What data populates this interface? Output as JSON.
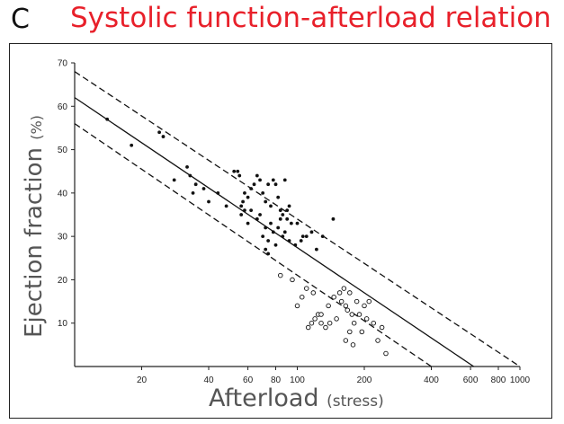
{
  "panel_letter": "C",
  "chart_data": {
    "type": "scatter",
    "title": "Systolic function-afterload relation",
    "ylabel": "Ejection fraction",
    "ylabel_unit": "(%)",
    "xlabel": "Afterload",
    "xlabel_unit": "(stress)",
    "x_scale": "log",
    "xlim": [
      10,
      1000
    ],
    "ylim": [
      0,
      70
    ],
    "x_ticks": [
      {
        "value": 20,
        "label": "20"
      },
      {
        "value": 40,
        "label": "40"
      },
      {
        "value": 60,
        "label": "60"
      },
      {
        "value": 80,
        "label": "80"
      },
      {
        "value": 100,
        "label": "100"
      },
      {
        "value": 200,
        "label": "200"
      },
      {
        "value": 400,
        "label": "400"
      },
      {
        "value": 600,
        "label": "600"
      },
      {
        "value": 800,
        "label": "800"
      },
      {
        "value": 1000,
        "label": "1000"
      }
    ],
    "y_ticks": [
      {
        "value": 10,
        "label": "10"
      },
      {
        "value": 20,
        "label": "20"
      },
      {
        "value": 30,
        "label": "30"
      },
      {
        "value": 40,
        "label": "40"
      },
      {
        "value": 50,
        "label": "50"
      },
      {
        "value": 60,
        "label": "60"
      },
      {
        "value": 70,
        "label": "70"
      }
    ],
    "grid": false,
    "lines": [
      {
        "style": "dashed",
        "points": [
          [
            10,
            68
          ],
          [
            1000,
            0
          ]
        ]
      },
      {
        "style": "solid",
        "points": [
          [
            10,
            62
          ],
          [
            620,
            0
          ]
        ]
      },
      {
        "style": "dashed",
        "points": [
          [
            10,
            56
          ],
          [
            400,
            0
          ]
        ]
      }
    ],
    "series": [
      {
        "marker": "filled",
        "points": [
          [
            14,
            57
          ],
          [
            18,
            51
          ],
          [
            24,
            54
          ],
          [
            25,
            53
          ],
          [
            28,
            43
          ],
          [
            32,
            46
          ],
          [
            33,
            44
          ],
          [
            34,
            40
          ],
          [
            35,
            42
          ],
          [
            38,
            41
          ],
          [
            40,
            38
          ],
          [
            44,
            40
          ],
          [
            48,
            37
          ],
          [
            52,
            45
          ],
          [
            54,
            45
          ],
          [
            55,
            44
          ],
          [
            56,
            37
          ],
          [
            57,
            38
          ],
          [
            58,
            36
          ],
          [
            60,
            39
          ],
          [
            62,
            41
          ],
          [
            64,
            42
          ],
          [
            66,
            44
          ],
          [
            68,
            43
          ],
          [
            70,
            40
          ],
          [
            72,
            38
          ],
          [
            74,
            42
          ],
          [
            76,
            37
          ],
          [
            78,
            43
          ],
          [
            80,
            42
          ],
          [
            82,
            39
          ],
          [
            84,
            36
          ],
          [
            86,
            35
          ],
          [
            88,
            43
          ],
          [
            90,
            34
          ],
          [
            92,
            37
          ],
          [
            56,
            35
          ],
          [
            60,
            33
          ],
          [
            66,
            34
          ],
          [
            70,
            30
          ],
          [
            72,
            32
          ],
          [
            74,
            29
          ],
          [
            76,
            33
          ],
          [
            78,
            31
          ],
          [
            80,
            28
          ],
          [
            82,
            32
          ],
          [
            86,
            30
          ],
          [
            88,
            31
          ],
          [
            94,
            33
          ],
          [
            98,
            28
          ],
          [
            104,
            29
          ],
          [
            110,
            30
          ],
          [
            116,
            31
          ],
          [
            122,
            27
          ],
          [
            130,
            30
          ],
          [
            145,
            34
          ],
          [
            74,
            26
          ],
          [
            72,
            27
          ],
          [
            84,
            34
          ],
          [
            90,
            36
          ],
          [
            58,
            40
          ],
          [
            62,
            36
          ],
          [
            68,
            35
          ],
          [
            92,
            29
          ],
          [
            100,
            33
          ],
          [
            106,
            30
          ]
        ]
      },
      {
        "marker": "open",
        "points": [
          [
            84,
            21
          ],
          [
            95,
            20
          ],
          [
            100,
            14
          ],
          [
            105,
            16
          ],
          [
            110,
            18
          ],
          [
            116,
            10
          ],
          [
            120,
            11
          ],
          [
            124,
            12
          ],
          [
            128,
            10
          ],
          [
            134,
            9
          ],
          [
            140,
            10
          ],
          [
            146,
            16
          ],
          [
            155,
            17
          ],
          [
            158,
            15
          ],
          [
            162,
            18
          ],
          [
            165,
            14
          ],
          [
            168,
            13
          ],
          [
            172,
            17
          ],
          [
            176,
            12
          ],
          [
            180,
            10
          ],
          [
            185,
            15
          ],
          [
            190,
            12
          ],
          [
            195,
            8
          ],
          [
            200,
            14
          ],
          [
            205,
            11
          ],
          [
            210,
            15
          ],
          [
            220,
            10
          ],
          [
            230,
            6
          ],
          [
            240,
            9
          ],
          [
            250,
            3
          ],
          [
            165,
            6
          ],
          [
            172,
            8
          ],
          [
            178,
            5
          ],
          [
            118,
            17
          ],
          [
            138,
            14
          ],
          [
            150,
            11
          ],
          [
            112,
            9
          ],
          [
            128,
            12
          ]
        ]
      }
    ]
  }
}
